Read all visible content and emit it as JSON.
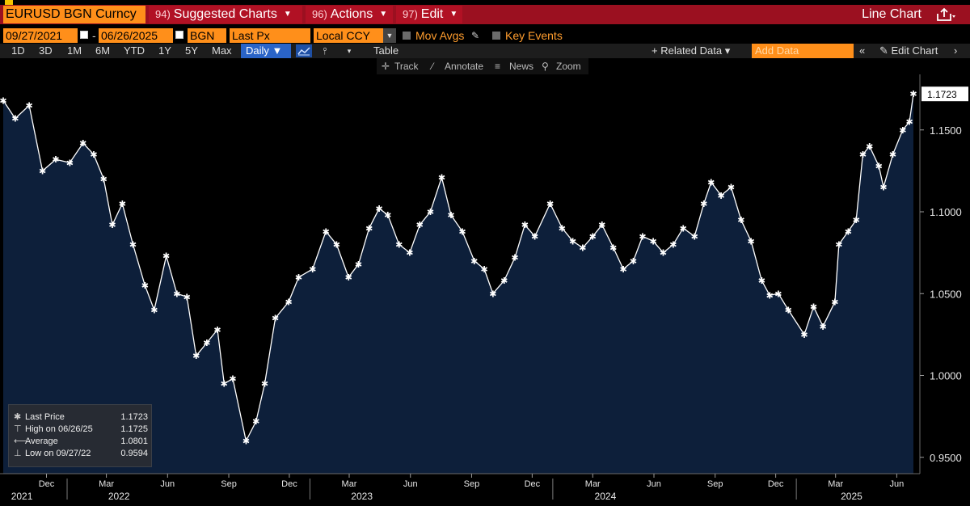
{
  "topbar": {
    "ticker": "EURUSD BGN Curncy",
    "menus": [
      {
        "num": "94)",
        "label": "Suggested Charts"
      },
      {
        "num": "96)",
        "label": "Actions"
      },
      {
        "num": "97)",
        "label": "Edit"
      }
    ],
    "chart_type": "Line Chart",
    "share_icon": "share-icon"
  },
  "row2": {
    "start_date": "09/27/2021",
    "end_date": "06/26/2025",
    "source": "BGN",
    "field": "Last Px",
    "currency": "Local CCY",
    "mov_avgs": "Mov Avgs",
    "key_events": "Key Events"
  },
  "row3": {
    "timeframes": [
      "1D",
      "3D",
      "1M",
      "6M",
      "YTD",
      "1Y",
      "5Y",
      "Max"
    ],
    "periodicity": "Daily ▼",
    "table": "Table",
    "related_data": "+ Related Data ▾",
    "add_data_placeholder": "Add Data",
    "collapse": "«",
    "edit_chart": "✎ Edit Chart",
    "right_chev": "›"
  },
  "row4": {
    "track": "Track",
    "annotate": "Annotate",
    "news": "News",
    "zoom": "Zoom"
  },
  "legend": {
    "rows": [
      {
        "label": "Last Price",
        "value": "1.1723"
      },
      {
        "label": "High on 06/26/25",
        "value": "1.1725"
      },
      {
        "label": "Average",
        "value": "1.0801"
      },
      {
        "label": "Low on 09/27/22",
        "value": "0.9594"
      }
    ]
  },
  "colors": {
    "area_fill": "#0d1f3a",
    "line": "#ffffff",
    "accent_orange": "#ff8f1a",
    "menu_red": "#9b1020"
  },
  "chart_data": {
    "type": "area",
    "series": [
      {
        "name": "Last Price",
        "values_note": "daily EURUSD close"
      }
    ],
    "x": [
      "2021-09-27",
      "2021-10-15",
      "2021-11-05",
      "2021-11-25",
      "2021-12-15",
      "2022-01-05",
      "2022-01-25",
      "2022-02-10",
      "2022-02-25",
      "2022-03-10",
      "2022-03-25",
      "2022-04-10",
      "2022-04-28",
      "2022-05-12",
      "2022-05-30",
      "2022-06-15",
      "2022-06-30",
      "2022-07-14",
      "2022-07-30",
      "2022-08-15",
      "2022-08-25",
      "2022-09-07",
      "2022-09-27",
      "2022-10-12",
      "2022-10-25",
      "2022-11-10",
      "2022-11-30",
      "2022-12-15",
      "2023-01-05",
      "2023-01-25",
      "2023-02-10",
      "2023-02-28",
      "2023-03-15",
      "2023-03-31",
      "2023-04-15",
      "2023-04-28",
      "2023-05-15",
      "2023-05-31",
      "2023-06-15",
      "2023-07-01",
      "2023-07-18",
      "2023-08-01",
      "2023-08-18",
      "2023-09-05",
      "2023-09-20",
      "2023-10-03",
      "2023-10-20",
      "2023-11-05",
      "2023-11-20",
      "2023-12-05",
      "2023-12-28",
      "2024-01-15",
      "2024-01-31",
      "2024-02-15",
      "2024-03-01",
      "2024-03-15",
      "2024-04-01",
      "2024-04-16",
      "2024-05-01",
      "2024-05-15",
      "2024-05-31",
      "2024-06-15",
      "2024-06-30",
      "2024-07-15",
      "2024-08-01",
      "2024-08-15",
      "2024-08-26",
      "2024-09-10",
      "2024-09-25",
      "2024-10-10",
      "2024-10-25",
      "2024-11-10",
      "2024-11-22",
      "2024-12-05",
      "2024-12-20",
      "2025-01-13",
      "2025-01-27",
      "2025-02-10",
      "2025-02-28",
      "2025-03-06",
      "2025-03-20",
      "2025-04-01",
      "2025-04-11",
      "2025-04-21",
      "2025-05-05",
      "2025-05-12",
      "2025-05-26",
      "2025-06-10",
      "2025-06-20",
      "2025-06-26"
    ],
    "values": [
      1.168,
      1.157,
      1.165,
      1.125,
      1.132,
      1.13,
      1.142,
      1.135,
      1.12,
      1.092,
      1.105,
      1.08,
      1.055,
      1.04,
      1.073,
      1.05,
      1.048,
      1.012,
      1.02,
      1.028,
      0.995,
      0.998,
      0.96,
      0.972,
      0.995,
      1.035,
      1.045,
      1.06,
      1.065,
      1.088,
      1.08,
      1.06,
      1.068,
      1.09,
      1.102,
      1.098,
      1.08,
      1.075,
      1.092,
      1.1,
      1.121,
      1.098,
      1.088,
      1.07,
      1.065,
      1.05,
      1.058,
      1.072,
      1.092,
      1.085,
      1.105,
      1.09,
      1.082,
      1.078,
      1.085,
      1.092,
      1.078,
      1.065,
      1.07,
      1.085,
      1.082,
      1.075,
      1.08,
      1.09,
      1.085,
      1.105,
      1.118,
      1.11,
      1.115,
      1.095,
      1.082,
      1.058,
      1.049,
      1.05,
      1.04,
      1.025,
      1.042,
      1.03,
      1.045,
      1.08,
      1.088,
      1.095,
      1.135,
      1.14,
      1.128,
      1.115,
      1.135,
      1.15,
      1.155,
      1.172
    ],
    "ylim": [
      0.94,
      1.18
    ],
    "y_ticks": [
      "1.1500",
      "1.1000",
      "1.0500",
      "1.0000",
      "0.9500"
    ],
    "y_tick_values": [
      1.15,
      1.1,
      1.05,
      1.0,
      0.95
    ],
    "last_label": "1.1723",
    "x_month_ticks": [
      "Dec",
      "Mar",
      "Jun",
      "Sep",
      "Dec",
      "Mar",
      "Jun",
      "Sep",
      "Dec",
      "Mar",
      "Jun",
      "Sep",
      "Dec",
      "Mar",
      "Jun"
    ],
    "x_month_tick_dates": [
      "2021-12-01",
      "2022-03-01",
      "2022-06-01",
      "2022-09-01",
      "2022-12-01",
      "2023-03-01",
      "2023-06-01",
      "2023-09-01",
      "2023-12-01",
      "2024-03-01",
      "2024-06-01",
      "2024-09-01",
      "2024-12-01",
      "2025-03-01",
      "2025-06-01"
    ],
    "x_year_labels": [
      "2021",
      "2022",
      "2023",
      "2024",
      "2025"
    ],
    "x_year_label_dates": [
      "2021-10-25",
      "2022-03-20",
      "2023-03-20",
      "2024-03-20",
      "2025-03-25"
    ],
    "x_year_separator_dates": [
      "2022-01-01",
      "2023-01-01",
      "2024-01-01",
      "2025-01-01"
    ],
    "x_range": [
      "2021-09-27",
      "2025-06-26"
    ]
  }
}
